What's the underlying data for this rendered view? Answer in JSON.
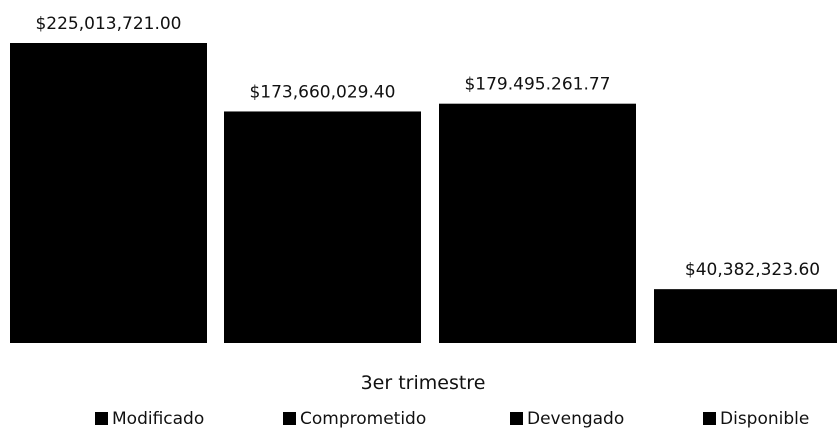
{
  "chart_data": {
    "type": "bar",
    "categories": [
      "3er trimestre"
    ],
    "series": [
      {
        "name": "Modificado",
        "values": [
          225013721.0
        ],
        "label": "$225,013,721.00"
      },
      {
        "name": "Comprometido",
        "values": [
          173660029.4
        ],
        "label": "$173,660,029.40"
      },
      {
        "name": "Devengado",
        "values": [
          179495261.77
        ],
        "label": "$179.495.261.77"
      },
      {
        "name": "Disponible",
        "values": [
          40382323.6
        ],
        "label": "$40,382,323.60"
      }
    ],
    "ylim": [
      0,
      225013721.0
    ],
    "grid": false,
    "legend": "bottom",
    "bar_color": "#000000"
  }
}
